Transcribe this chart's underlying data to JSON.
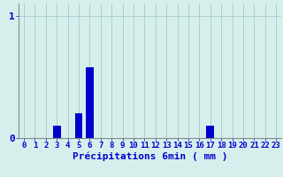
{
  "hours": [
    0,
    1,
    2,
    3,
    4,
    5,
    6,
    7,
    8,
    9,
    10,
    11,
    12,
    13,
    14,
    15,
    16,
    17,
    18,
    19,
    20,
    21,
    22,
    23
  ],
  "values": [
    0,
    0,
    0,
    0.1,
    0,
    0.2,
    0.58,
    0,
    0,
    0,
    0,
    0,
    0,
    0,
    0,
    0,
    0,
    0.1,
    0,
    0,
    0,
    0,
    0,
    0
  ],
  "bar_color": "#0000cc",
  "background_color": "#d6efed",
  "grid_color": "#aacfcc",
  "axis_color": "#888888",
  "text_color": "#0000cc",
  "xlabel": "Précipitations 6min ( mm )",
  "xlabel_fontsize": 8,
  "tick_fontsize": 6.5,
  "ytick_fontsize": 8,
  "yticks": [
    0,
    1
  ],
  "ylim": [
    0,
    1.1
  ],
  "xlim": [
    -0.5,
    23.5
  ]
}
